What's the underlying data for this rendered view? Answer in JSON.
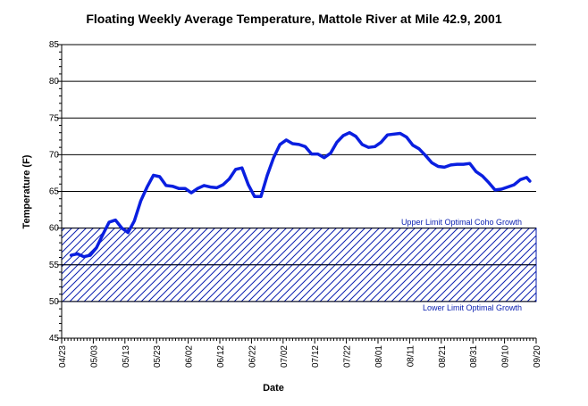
{
  "chart_data": {
    "type": "line",
    "title": "Floating Weekly Average Temperature, Mattole River at Mile 42.9, 2001",
    "xlabel": "Date",
    "ylabel": "Temperature (F)",
    "ylim": [
      45,
      85
    ],
    "y_ticks": [
      45,
      50,
      55,
      60,
      65,
      70,
      75,
      80,
      85
    ],
    "x_tick_labels": [
      "04/23",
      "05/03",
      "05/13",
      "05/23",
      "06/02",
      "06/12",
      "06/22",
      "07/02",
      "07/12",
      "07/22",
      "08/01",
      "08/11",
      "08/21",
      "08/31",
      "09/10",
      "09/20"
    ],
    "x_start": "2001-04-23",
    "x_end": "2001-09-20",
    "grid": "horizontal",
    "zone": {
      "upper": 60,
      "lower": 50,
      "midline": 55,
      "pattern": "diagonal-hatch"
    },
    "annotations": {
      "upper": "Upper Limit Optimal Coho Growth",
      "lower": "Lower Limit Optimal Growth"
    },
    "colors": {
      "line": "#0a1fe0",
      "zone": "#0a1fb0",
      "grid": "#000000"
    },
    "series": [
      {
        "x": [
          "2001-04-26",
          "2001-04-28",
          "2001-04-30",
          "2001-05-02",
          "2001-05-04",
          "2001-05-06",
          "2001-05-08",
          "2001-05-10",
          "2001-05-12",
          "2001-05-14",
          "2001-05-16",
          "2001-05-18",
          "2001-05-20",
          "2001-05-22",
          "2001-05-24",
          "2001-05-26",
          "2001-05-28",
          "2001-05-30",
          "2001-06-01",
          "2001-06-03",
          "2001-06-05",
          "2001-06-07",
          "2001-06-09",
          "2001-06-11",
          "2001-06-13",
          "2001-06-15",
          "2001-06-17",
          "2001-06-19",
          "2001-06-21",
          "2001-06-23",
          "2001-06-25",
          "2001-06-27",
          "2001-06-29",
          "2001-07-01",
          "2001-07-03",
          "2001-07-05",
          "2001-07-07",
          "2001-07-09",
          "2001-07-11",
          "2001-07-13",
          "2001-07-15",
          "2001-07-17",
          "2001-07-19",
          "2001-07-21",
          "2001-07-23",
          "2001-07-25",
          "2001-07-27",
          "2001-07-29",
          "2001-07-31",
          "2001-08-02",
          "2001-08-04",
          "2001-08-06",
          "2001-08-08",
          "2001-08-10",
          "2001-08-12",
          "2001-08-14",
          "2001-08-16",
          "2001-08-18",
          "2001-08-20",
          "2001-08-22",
          "2001-08-24",
          "2001-08-26",
          "2001-08-28",
          "2001-08-30",
          "2001-09-01",
          "2001-09-03",
          "2001-09-05",
          "2001-09-07",
          "2001-09-09",
          "2001-09-11",
          "2001-09-13",
          "2001-09-15",
          "2001-09-17",
          "2001-09-18"
        ],
        "values": [
          56.3,
          56.5,
          56.1,
          56.3,
          57.3,
          59.1,
          60.8,
          61.1,
          60.0,
          59.4,
          61.0,
          63.7,
          65.6,
          67.2,
          67.0,
          65.8,
          65.7,
          65.4,
          65.4,
          64.8,
          65.4,
          65.8,
          65.6,
          65.5,
          65.9,
          66.7,
          68.0,
          68.2,
          65.9,
          64.3,
          64.3,
          67.2,
          69.6,
          71.4,
          72.0,
          71.5,
          71.4,
          71.1,
          70.1,
          70.1,
          69.6,
          70.2,
          71.7,
          72.6,
          73.0,
          72.5,
          71.4,
          71.0,
          71.1,
          71.7,
          72.7,
          72.8,
          72.9,
          72.4,
          71.3,
          70.8,
          69.9,
          68.9,
          68.4,
          68.3,
          68.6,
          68.7,
          68.7,
          68.8,
          67.7,
          67.1,
          66.2,
          65.2,
          65.3,
          65.6,
          65.9,
          66.6,
          66.9,
          66.4
        ]
      }
    ]
  }
}
